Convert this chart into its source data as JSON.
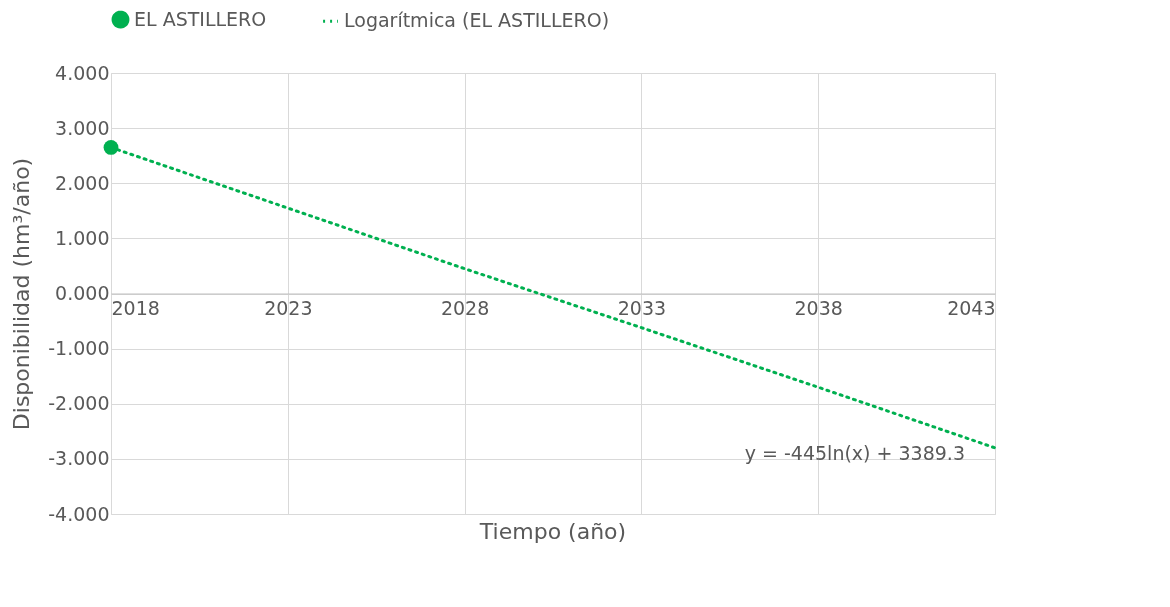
{
  "chart_data": {
    "type": "scatter",
    "xlabel": "Tiempo (año)",
    "ylabel": "Disponibilidad (hm³/año)",
    "xlim": [
      2018,
      2043
    ],
    "xticks": [
      2018,
      2023,
      2028,
      2033,
      2038,
      2043
    ],
    "ylim": [
      -4,
      4
    ],
    "yticks": [
      {
        "value": -4,
        "label": "-4.000"
      },
      {
        "value": -3,
        "label": "-3.000"
      },
      {
        "value": -2,
        "label": "-2.000"
      },
      {
        "value": -1,
        "label": "-1.000"
      },
      {
        "value": 0,
        "label": "0.000"
      },
      {
        "value": 1,
        "label": "1.000"
      },
      {
        "value": 2,
        "label": "2.000"
      },
      {
        "value": 3,
        "label": "3.000"
      },
      {
        "value": 4,
        "label": "4.000"
      }
    ],
    "grid": true,
    "legend": "top",
    "series": [
      {
        "name": "EL ASTILLERO",
        "marker": "circle",
        "color": "#00b050",
        "x": [
          2018
        ],
        "values": [
          2.65
        ]
      },
      {
        "name": "Logarítmica (EL ASTILLERO)",
        "type": "line",
        "line_style": "dotted",
        "color": "#00b050",
        "x": [
          2018,
          2023,
          2028,
          2033,
          2038,
          2043
        ],
        "values": [
          2.65,
          1.55,
          0.45,
          -0.62,
          -1.7,
          -2.8
        ]
      }
    ],
    "annotations": [
      "y = -445ln(x) + 3389.3"
    ]
  }
}
